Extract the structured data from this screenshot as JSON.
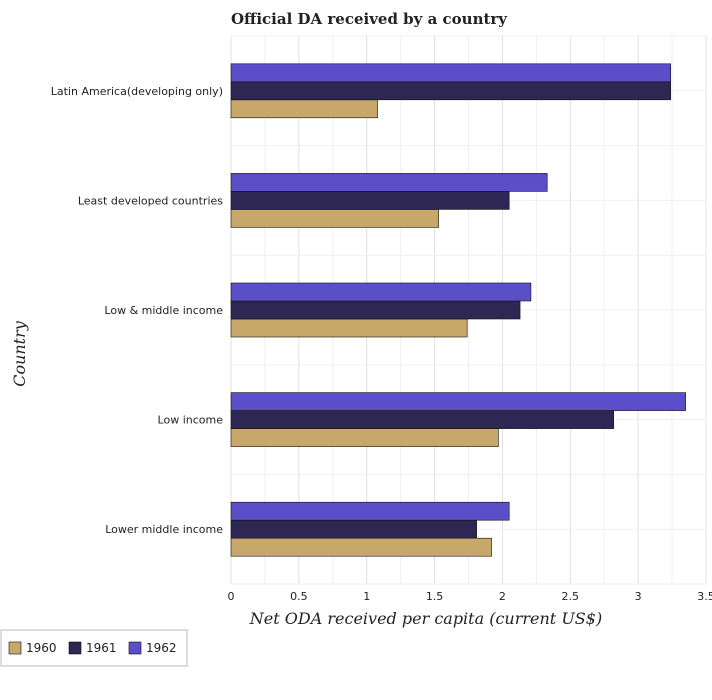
{
  "chart_data": {
    "type": "bar",
    "orientation": "horizontal",
    "title": "Official DA received by a country",
    "xlabel": "Net ODA received per capita (current US$)",
    "ylabel": "Country",
    "xlim": [
      0,
      3.5
    ],
    "xticks": [
      0,
      0.5,
      1,
      1.5,
      2,
      2.5,
      3,
      3.5
    ],
    "xtick_labels": [
      "0",
      "0.5",
      "1",
      "1.5",
      "2",
      "2.5",
      "3",
      "3.5"
    ],
    "grid": true,
    "legend_position": "bottom-left",
    "categories": [
      "Latin America(developing only)",
      "Least developed countries",
      "Low & middle income",
      "Low income",
      "Lower middle income"
    ],
    "series": [
      {
        "name": "1960",
        "color": "#c8a76a",
        "values": [
          1.08,
          1.53,
          1.74,
          1.97,
          1.92
        ]
      },
      {
        "name": "1961",
        "color": "#2e2753",
        "values": [
          3.24,
          2.05,
          2.13,
          2.82,
          1.81
        ]
      },
      {
        "name": "1962",
        "color": "#5a4fc8",
        "values": [
          3.24,
          2.33,
          2.21,
          3.35,
          2.05
        ]
      }
    ]
  }
}
